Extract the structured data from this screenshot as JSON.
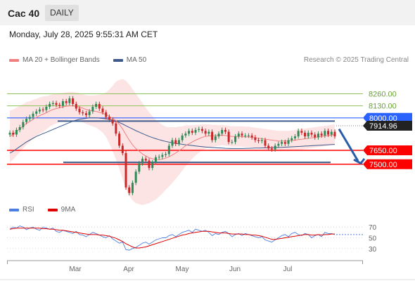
{
  "header": {
    "title": "Cac 40",
    "period": "DAILY"
  },
  "timestamp": "Monday, July 28, 2025 9:55:31 AM CET",
  "legend": {
    "ma20_label": "MA 20 + Bollinger Bands",
    "ma50_label": "MA 50",
    "credit": "Research © 2025 Trading Central",
    "rsi_label": "RSI",
    "rsi_ma_label": "9MA"
  },
  "colors": {
    "ma20": "#f08080",
    "ma50": "#3c5a8c",
    "bollinger_fill": "#fde4e4",
    "resistance": "#8fc35a",
    "pivot": "#2962ff",
    "support": "#ff0000",
    "rsi": "#4a7fe0",
    "rsi_ma": "#e00000",
    "candle_up": "#2e8b57",
    "candle_down": "#c82828",
    "current_price_bg": "#222222"
  },
  "chart_data": [
    {
      "type": "candlestick",
      "y_range": [
        7150,
        8400
      ],
      "x_tick_labels": [
        "Mar",
        "Apr",
        "May",
        "Jun",
        "Jul"
      ],
      "price_levels": [
        {
          "value": 8260.0,
          "label": "8260.00",
          "kind": "resistance"
        },
        {
          "value": 8130.0,
          "label": "8130.00",
          "kind": "resistance"
        },
        {
          "value": 8000.0,
          "label": "8000.00",
          "kind": "pivot"
        },
        {
          "value": 7914.96,
          "label": "7914.96",
          "kind": "current"
        },
        {
          "value": 7650.0,
          "label": "7650.00",
          "kind": "support"
        },
        {
          "value": 7500.0,
          "label": "7500.00",
          "kind": "support"
        }
      ],
      "close": [
        7840,
        7820,
        7870,
        7900,
        7955,
        7990,
        8010,
        8045,
        8070,
        8090,
        8085,
        8120,
        8150,
        8160,
        8140,
        8130,
        8180,
        8160,
        8210,
        8150,
        8100,
        8060,
        8050,
        8030,
        8070,
        8120,
        8150,
        8100,
        8060,
        8010,
        7980,
        7940,
        7830,
        7700,
        7620,
        7250,
        7190,
        7300,
        7420,
        7510,
        7560,
        7540,
        7460,
        7520,
        7575,
        7580,
        7600,
        7610,
        7700,
        7760,
        7720,
        7760,
        7810,
        7830,
        7860,
        7840,
        7870,
        7880,
        7860,
        7830,
        7850,
        7760,
        7800,
        7830,
        7870,
        7850,
        7740,
        7740,
        7800,
        7830,
        7810,
        7810,
        7810,
        7790,
        7760,
        7750,
        7760,
        7700,
        7670,
        7660,
        7700,
        7720,
        7740,
        7720,
        7760,
        7780,
        7800,
        7860,
        7840,
        7800,
        7840,
        7820,
        7790,
        7830,
        7810,
        7860,
        7820,
        7850,
        7800
      ],
      "ma20": [
        7800,
        7820,
        7850,
        7880,
        7910,
        7940,
        7960,
        7985,
        8005,
        8025,
        8040,
        8055,
        8075,
        8090,
        8100,
        8110,
        8120,
        8125,
        8130,
        8130,
        8125,
        8115,
        8105,
        8090,
        8080,
        8075,
        8070,
        8060,
        8050,
        8035,
        8015,
        7995,
        7970,
        7930,
        7880,
        7820,
        7760,
        7710,
        7670,
        7640,
        7610,
        7590,
        7570,
        7560,
        7550,
        7550,
        7555,
        7565,
        7580,
        7600,
        7620,
        7645,
        7670,
        7700,
        7720,
        7740,
        7760,
        7775,
        7790,
        7800,
        7805,
        7805,
        7810,
        7810,
        7815,
        7810,
        7805,
        7800,
        7800,
        7800,
        7800,
        7795,
        7795,
        7790,
        7785,
        7780,
        7775,
        7770,
        7765,
        7760,
        7755,
        7750,
        7750,
        7750,
        7750,
        7755,
        7760,
        7765,
        7770,
        7775,
        7780,
        7785,
        7790,
        7795,
        7800,
        7805,
        7810,
        7815,
        7820
      ],
      "ma50": [
        7620,
        7640,
        7665,
        7690,
        7715,
        7740,
        7760,
        7780,
        7800,
        7815,
        7830,
        7845,
        7860,
        7875,
        7890,
        7905,
        7920,
        7935,
        7950,
        7965,
        7975,
        7985,
        7990,
        7995,
        8000,
        8000,
        8000,
        7998,
        7994,
        7990,
        7984,
        7976,
        7964,
        7950,
        7934,
        7916,
        7898,
        7880,
        7862,
        7846,
        7830,
        7815,
        7800,
        7788,
        7776,
        7765,
        7755,
        7746,
        7738,
        7731,
        7725,
        7720,
        7715,
        7710,
        7706,
        7702,
        7698,
        7694,
        7690,
        7686,
        7683,
        7680,
        7678,
        7676,
        7674,
        7672,
        7671,
        7670,
        7670,
        7670,
        7670,
        7671,
        7672,
        7673,
        7674,
        7675,
        7676,
        7677,
        7678,
        7679,
        7680,
        7681,
        7682,
        7684,
        7686,
        7688,
        7690,
        7692,
        7694,
        7696,
        7698,
        7700,
        7702,
        7704,
        7706,
        7708,
        7710,
        7712,
        7714
      ],
      "bollinger_width": [
        280,
        270,
        260,
        250,
        240,
        230,
        220,
        210,
        200,
        195,
        190,
        180,
        170,
        165,
        160,
        155,
        150,
        150,
        150,
        150,
        150,
        150,
        150,
        155,
        160,
        165,
        175,
        190,
        210,
        240,
        290,
        350,
        420,
        480,
        540,
        580,
        600,
        600,
        590,
        570,
        550,
        520,
        490,
        460,
        430,
        400,
        370,
        340,
        320,
        300,
        280,
        260,
        240,
        220,
        200,
        180,
        165,
        150,
        140,
        130,
        125,
        120,
        115,
        110,
        110,
        110,
        110,
        110,
        110,
        110,
        110,
        110,
        110,
        110,
        110,
        110,
        110,
        110,
        110,
        110,
        110,
        110,
        110,
        110,
        110,
        110,
        110,
        110,
        110,
        110,
        110,
        110,
        110,
        110,
        110,
        110,
        110,
        110,
        110
      ]
    },
    {
      "type": "line",
      "y_ticks": [
        30,
        50,
        70
      ],
      "y_range": [
        14,
        82
      ],
      "series": [
        {
          "name": "RSI",
          "values": [
            66,
            70,
            68,
            72,
            70,
            65,
            68,
            70,
            66,
            64,
            70,
            68,
            66,
            68,
            62,
            60,
            64,
            62,
            60,
            58,
            62,
            56,
            55,
            52,
            56,
            60,
            58,
            55,
            52,
            50,
            54,
            48,
            44,
            40,
            42,
            28,
            27,
            30,
            32,
            36,
            40,
            42,
            38,
            42,
            46,
            48,
            50,
            50,
            54,
            56,
            52,
            56,
            60,
            62,
            64,
            60,
            66,
            64,
            62,
            64,
            60,
            54,
            58,
            56,
            60,
            62,
            58,
            52,
            56,
            58,
            54,
            58,
            56,
            54,
            52,
            50,
            52,
            46,
            44,
            42,
            46,
            50,
            54,
            56,
            52,
            58,
            60,
            56,
            54,
            58,
            56,
            50,
            54,
            56,
            52,
            60,
            58,
            58,
            56
          ]
        },
        {
          "name": "9MA",
          "values": [
            66,
            67,
            68,
            68,
            68,
            68,
            68,
            68,
            68,
            68,
            67,
            67,
            66,
            66,
            65,
            64,
            64,
            63,
            62,
            61,
            60,
            59,
            58,
            57,
            56,
            56,
            56,
            55,
            55,
            54,
            53,
            51,
            49,
            46,
            43,
            39,
            36,
            33,
            31,
            31,
            32,
            33,
            35,
            37,
            39,
            41,
            43,
            45,
            47,
            49,
            51,
            53,
            55,
            56,
            58,
            59,
            60,
            61,
            62,
            62,
            62,
            61,
            60,
            59,
            59,
            59,
            58,
            57,
            57,
            57,
            57,
            56,
            56,
            55,
            55,
            54,
            53,
            51,
            49,
            47,
            47,
            48,
            49,
            50,
            51,
            52,
            53,
            54,
            55,
            56,
            56,
            55,
            55,
            56,
            55,
            56,
            56,
            57,
            57
          ]
        }
      ]
    }
  ]
}
